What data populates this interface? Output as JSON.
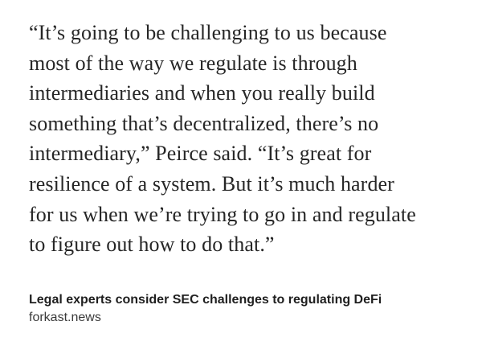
{
  "quote": {
    "lines": [
      "“It’s going to be challenging to us because",
      "most of the way we regulate is through",
      "intermediaries and when you really build",
      "something that’s decentralized, there’s no",
      "intermediary,” Peirce said. “It’s great for",
      "resilience of a system. But it’s much harder",
      "for us when we’re trying to go in and regulate",
      "to figure out how to do that.”"
    ]
  },
  "link_preview": {
    "title": "Legal experts consider SEC challenges to regulating DeFi",
    "domain": "forkast.news"
  }
}
